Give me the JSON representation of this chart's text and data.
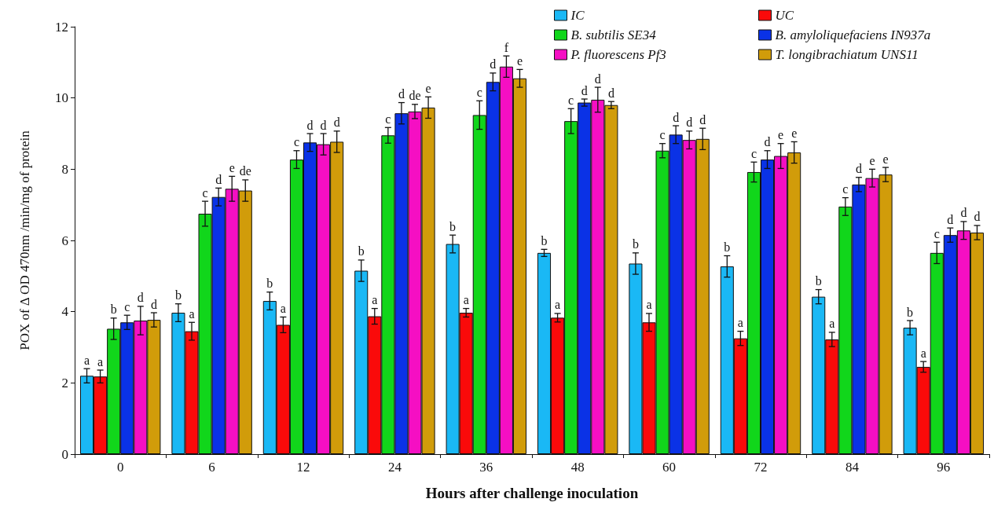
{
  "chart_data": {
    "type": "bar",
    "xlabel": "Hours after challenge inoculation",
    "ylabel": "POX of Δ OD 470nm /min/mg of protein",
    "categories": [
      "0",
      "6",
      "12",
      "24",
      "36",
      "48",
      "60",
      "72",
      "84",
      "96"
    ],
    "ylim": [
      0,
      12
    ],
    "yticks": [
      0,
      2,
      4,
      6,
      8,
      10,
      12
    ],
    "grid": false,
    "legend": "top right",
    "series": [
      {
        "name": "IC",
        "color": "#1ab8f5",
        "values": [
          2.2,
          3.97,
          4.3,
          5.15,
          5.9,
          5.65,
          5.35,
          5.27,
          4.42,
          3.55
        ],
        "errors": [
          0.2,
          0.25,
          0.25,
          0.3,
          0.25,
          0.1,
          0.3,
          0.3,
          0.2,
          0.2
        ],
        "value_labels": [
          "a",
          "b",
          "b",
          "b",
          "b",
          "b",
          "b",
          "b",
          "b",
          "b"
        ]
      },
      {
        "name": "UC",
        "color": "#fa0a0a",
        "values": [
          2.18,
          3.45,
          3.63,
          3.87,
          3.97,
          3.83,
          3.7,
          3.25,
          3.22,
          2.45
        ],
        "errors": [
          0.18,
          0.25,
          0.22,
          0.22,
          0.12,
          0.12,
          0.25,
          0.2,
          0.2,
          0.15
        ],
        "value_labels": [
          "a",
          "a",
          "a",
          "a",
          "a",
          "a",
          "a",
          "a",
          "a",
          "a"
        ]
      },
      {
        "name": "B. subtilis SE34",
        "color": "#11d61b",
        "values": [
          3.52,
          6.75,
          8.27,
          8.95,
          9.52,
          9.35,
          8.52,
          7.92,
          6.95,
          5.65
        ],
        "errors": [
          0.3,
          0.35,
          0.25,
          0.22,
          0.4,
          0.35,
          0.2,
          0.28,
          0.25,
          0.3
        ],
        "value_labels": [
          "b",
          "c",
          "c",
          "c",
          "c",
          "c",
          "c",
          "c",
          "c",
          "c"
        ]
      },
      {
        "name": "B. amyloliquefaciens IN937a",
        "color": "#0a32e6",
        "values": [
          3.7,
          7.22,
          8.75,
          9.57,
          10.45,
          9.87,
          8.97,
          8.27,
          7.57,
          6.15
        ],
        "errors": [
          0.2,
          0.25,
          0.25,
          0.3,
          0.25,
          0.1,
          0.25,
          0.25,
          0.2,
          0.2
        ],
        "value_labels": [
          "c",
          "d",
          "d",
          "d",
          "d",
          "d",
          "d",
          "d",
          "d",
          "d"
        ]
      },
      {
        "name": "P. fluorescens Pf3",
        "color": "#f50fc3",
        "values": [
          3.75,
          7.45,
          8.7,
          9.62,
          10.88,
          9.95,
          8.82,
          8.37,
          7.75,
          6.28
        ],
        "errors": [
          0.4,
          0.35,
          0.3,
          0.2,
          0.3,
          0.35,
          0.25,
          0.35,
          0.25,
          0.25
        ],
        "value_labels": [
          "d",
          "e",
          "d",
          "de",
          "f",
          "d",
          "d",
          "e",
          "e",
          "d"
        ]
      },
      {
        "name": "T. longibrachiatum UNS11",
        "color": "#d19c0a",
        "values": [
          3.77,
          7.4,
          8.77,
          9.73,
          10.55,
          9.8,
          8.85,
          8.47,
          7.85,
          6.22
        ],
        "errors": [
          0.2,
          0.3,
          0.3,
          0.3,
          0.25,
          0.1,
          0.3,
          0.3,
          0.2,
          0.2
        ],
        "value_labels": [
          "d",
          "de",
          "d",
          "e",
          "e",
          "d",
          "d",
          "e",
          "e",
          "d"
        ]
      }
    ]
  }
}
